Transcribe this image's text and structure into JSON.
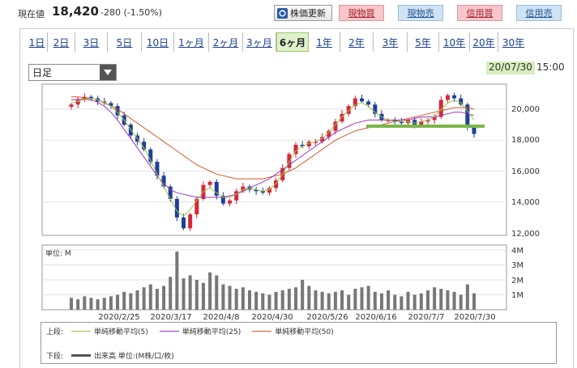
{
  "quote": {
    "label": "現在値",
    "price": "18,420",
    "change": "-280 (-1.50%)"
  },
  "toolbar": {
    "refresh_label": "株価更新",
    "buttons": [
      {
        "label": "現物買",
        "color": "red"
      },
      {
        "label": "現物売",
        "color": "blue"
      },
      {
        "label": "信用買",
        "color": "red"
      },
      {
        "label": "信用売",
        "color": "blue"
      }
    ]
  },
  "period_tabs": [
    {
      "label": "1日",
      "active": false
    },
    {
      "label": "2日",
      "active": false
    },
    {
      "label": "3日",
      "active": false
    },
    {
      "label": "5日",
      "active": false
    },
    {
      "label": "10日",
      "active": false
    },
    {
      "label": "1ヶ月",
      "active": false
    },
    {
      "label": "2ヶ月",
      "active": false
    },
    {
      "label": "3ヶ月",
      "active": false
    },
    {
      "label": "6ヶ月",
      "active": true
    },
    {
      "label": "1年",
      "active": false
    },
    {
      "label": "2年",
      "active": false
    },
    {
      "label": "3年",
      "active": false
    },
    {
      "label": "5年",
      "active": false
    },
    {
      "label": "10年",
      "active": false
    },
    {
      "label": "20年",
      "active": false
    },
    {
      "label": "30年",
      "active": false
    }
  ],
  "interval_select": {
    "value": "日足"
  },
  "as_of": {
    "date": "20/07/30",
    "time": "15:00"
  },
  "chart": {
    "price_ticks": [
      "20,000",
      "18,000",
      "16,000",
      "14,000",
      "12,000"
    ],
    "volume_unit_label": "単位: M",
    "volume_ticks": [
      "4M",
      "3M",
      "2M",
      "1M"
    ],
    "x_ticks": [
      "2020/2/25",
      "2020/3/17",
      "2020/4/8",
      "2020/4/30",
      "2020/5/26",
      "2020/6/16",
      "2020/7/7",
      "2020/7/30"
    ],
    "colors": {
      "up": "#d6263c",
      "down": "#1f3f99",
      "ma5": "#9cc73f",
      "ma25": "#9b36c2",
      "ma50": "#d4572b",
      "support": "#7ab648",
      "volume": "#777777"
    }
  },
  "legend": {
    "upper_label": "上段:",
    "ma5": "単純移動平均(5)",
    "ma25": "単純移動平均(25)",
    "ma50": "単純移動平均(50)",
    "lower_label": "下段:",
    "volume": "出来高 単位:(M株/口/枚)"
  },
  "chart_data": {
    "type": "candlestick",
    "y_range": [
      12000,
      21000
    ],
    "volume_range_M": [
      0,
      4
    ],
    "x_labels": [
      "2020/2/25",
      "2020/3/17",
      "2020/4/8",
      "2020/4/30",
      "2020/5/26",
      "2020/6/16",
      "2020/7/7",
      "2020/7/30"
    ],
    "close_path": [
      20300,
      20600,
      20800,
      20700,
      20500,
      20400,
      20200,
      19600,
      19000,
      18300,
      17900,
      17400,
      16600,
      15700,
      15000,
      14200,
      13000,
      12300,
      13200,
      14200,
      15100,
      15300,
      14400,
      13900,
      14100,
      14700,
      15000,
      14800,
      14700,
      14600,
      14900,
      15400,
      16200,
      17100,
      17700,
      17600,
      17900,
      17900,
      18200,
      18600,
      19200,
      19700,
      20200,
      20700,
      20500,
      20300,
      19700,
      19300,
      19300,
      19200,
      19100,
      19300,
      19000,
      19200,
      19300,
      19500,
      20600,
      20900,
      20700,
      20300,
      18800,
      18400
    ],
    "ma5_path": [
      20400,
      20500,
      20650,
      20700,
      20600,
      20450,
      20200,
      19800,
      19300,
      18700,
      18100,
      17500,
      16700,
      15800,
      15000,
      14200,
      13400,
      13100,
      13500,
      14100,
      14700,
      14900,
      14600,
      14300,
      14300,
      14500,
      14800,
      14900,
      14800,
      14700,
      14800,
      15200,
      15800,
      16600,
      17300,
      17600,
      17800,
      17900,
      18100,
      18500,
      19000,
      19500,
      19900,
      20300,
      20400,
      20200,
      19800,
      19500,
      19300,
      19200,
      19200,
      19200,
      19100,
      19200,
      19300,
      19500,
      20000,
      20400,
      20600,
      20400,
      19900,
      19300
    ],
    "ma25_path": [
      20600,
      20650,
      20650,
      20600,
      20450,
      20200,
      19800,
      19300,
      18700,
      18100,
      17500,
      16900,
      16300,
      15700,
      15200,
      14800,
      14600,
      14500,
      14400,
      14300,
      14300,
      14300,
      14300,
      14300,
      14400,
      14500,
      14700,
      14900,
      15100,
      15300,
      15500,
      15800,
      16100,
      16400,
      16700,
      17000,
      17300,
      17600,
      17900,
      18200,
      18500,
      18700,
      18900,
      19100,
      19200,
      19300,
      19300,
      19300,
      19300,
      19300,
      19300,
      19300,
      19400,
      19500,
      19500,
      19500,
      19600,
      19700,
      19800,
      19800,
      19700,
      19600
    ],
    "ma50_path": [
      20800,
      20800,
      20750,
      20700,
      20600,
      20400,
      20200,
      20000,
      19700,
      19400,
      19100,
      18800,
      18500,
      18200,
      17900,
      17600,
      17300,
      17000,
      16700,
      16400,
      16200,
      16000,
      15800,
      15700,
      15600,
      15500,
      15500,
      15500,
      15500,
      15500,
      15600,
      15700,
      15800,
      16000,
      16200,
      16500,
      16800,
      17100,
      17400,
      17700,
      18000,
      18200,
      18400,
      18600,
      18700,
      18800,
      18900,
      19000,
      19100,
      19200,
      19300,
      19400,
      19500,
      19600,
      19700,
      19800,
      19900,
      20000,
      20100,
      20100,
      20100,
      20000
    ],
    "volume_M": [
      0.8,
      0.7,
      0.9,
      0.8,
      0.7,
      0.8,
      0.9,
      1.0,
      1.2,
      1.1,
      1.3,
      1.5,
      1.7,
      1.4,
      1.6,
      2.2,
      3.9,
      2.1,
      2.3,
      2.0,
      1.8,
      2.5,
      2.3,
      1.7,
      1.6,
      1.4,
      1.5,
      1.3,
      1.2,
      1.1,
      1.0,
      1.2,
      1.3,
      1.4,
      1.5,
      2.0,
      1.6,
      1.3,
      1.2,
      1.1,
      1.2,
      1.3,
      1.0,
      1.4,
      1.5,
      1.6,
      1.2,
      1.1,
      1.3,
      1.0,
      0.9,
      1.2,
      1.0,
      1.1,
      1.3,
      1.5,
      1.4,
      1.3,
      1.2,
      1.0,
      1.7,
      1.1
    ],
    "support_level": 18900
  }
}
